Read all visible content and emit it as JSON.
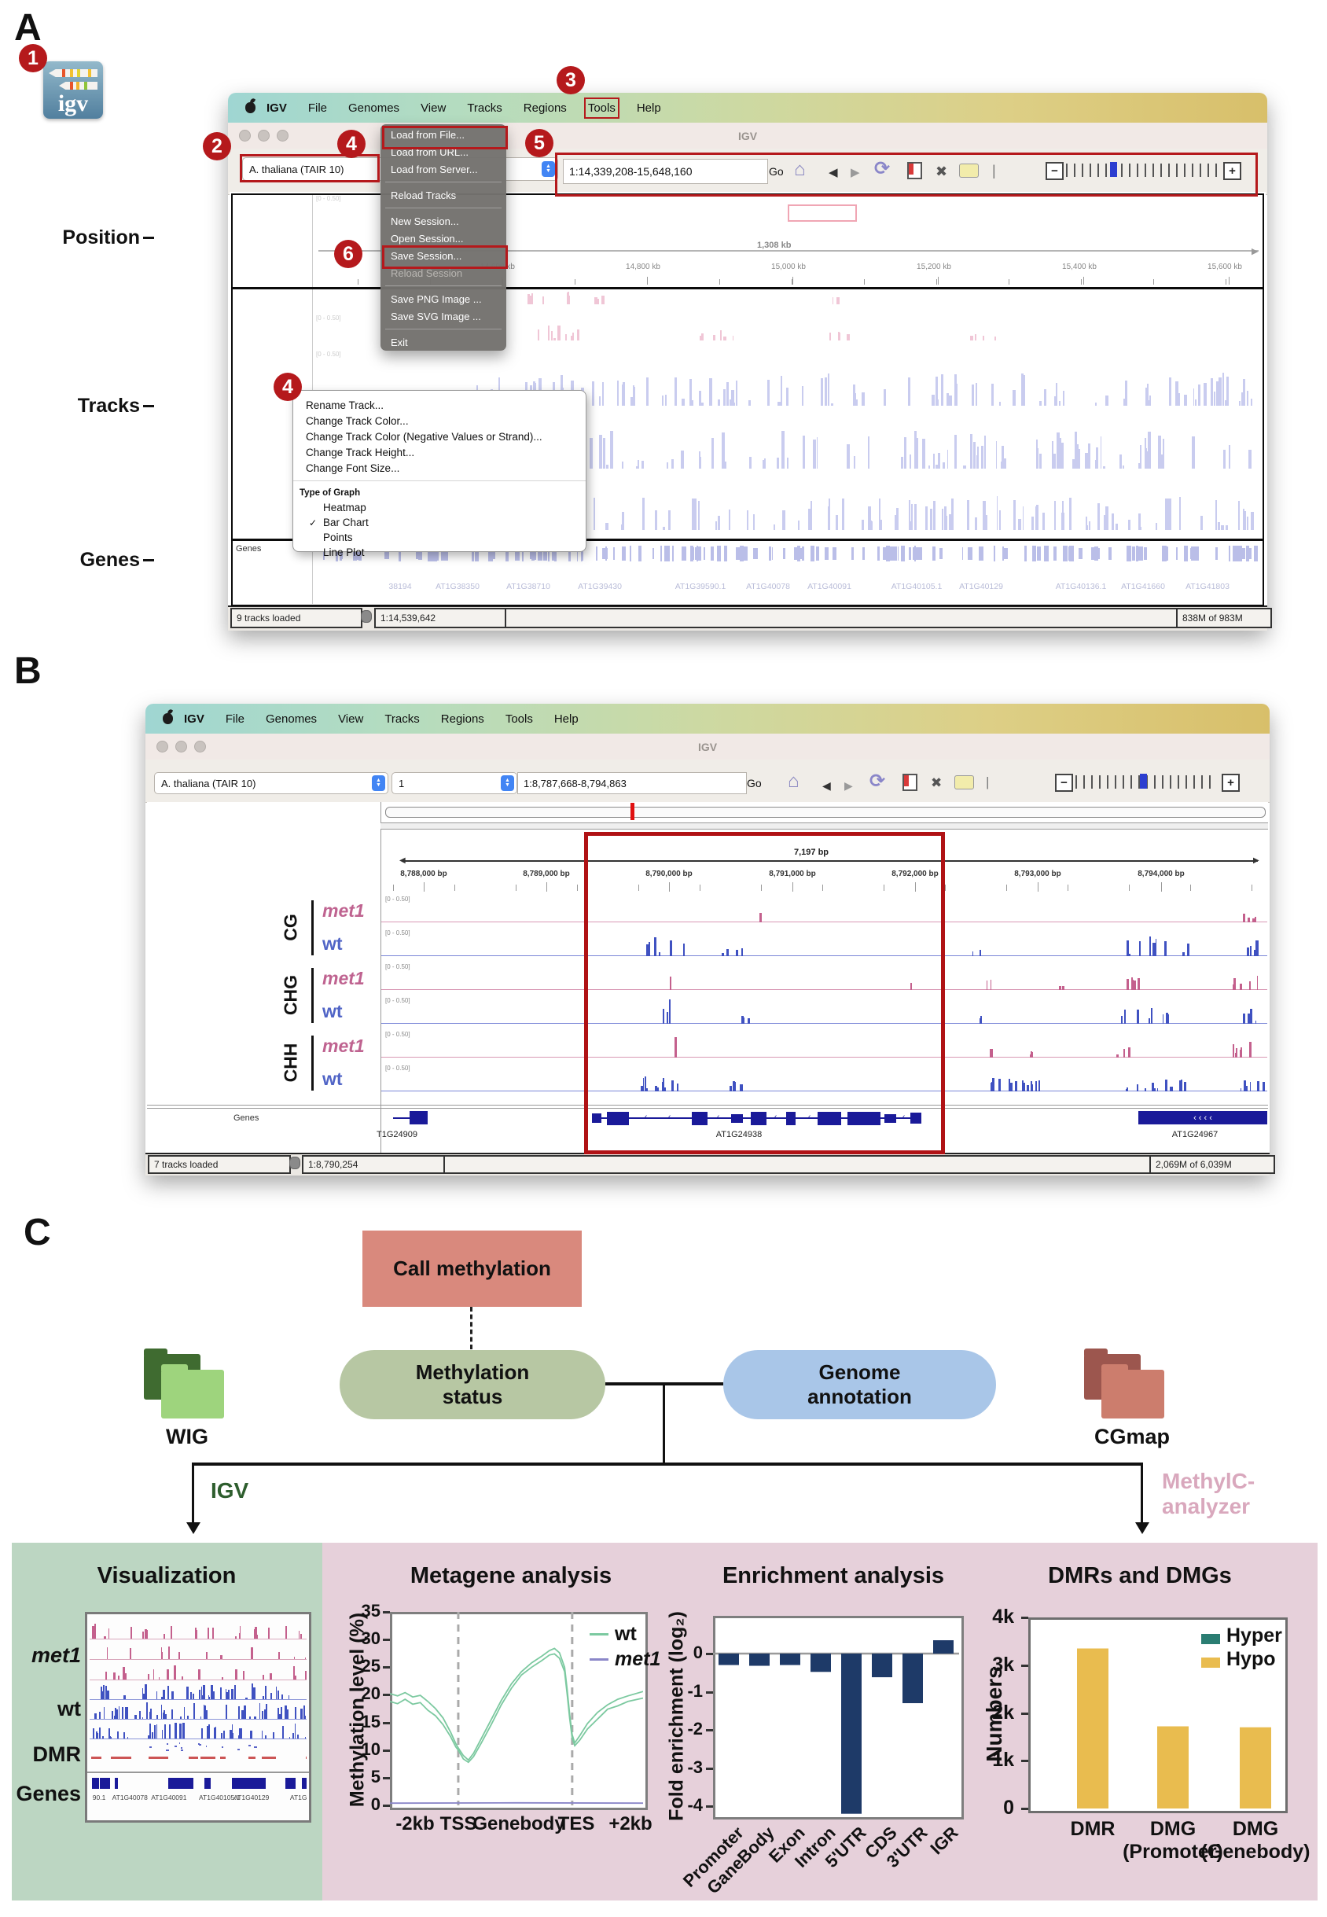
{
  "figure": {
    "panel_a": "A",
    "panel_b": "B",
    "panel_c": "C"
  },
  "badges": {
    "b1": "1",
    "b2": "2",
    "b3": "3",
    "b4": "4",
    "b5": "5",
    "b6": "6"
  },
  "igv_logo_text": "igv",
  "menubar_items": [
    "IGV",
    "File",
    "Genomes",
    "View",
    "Tracks",
    "Regions",
    "Tools",
    "Help"
  ],
  "panelA": {
    "side_labels": [
      "Position",
      "Tracks",
      "Genes"
    ],
    "window_title": "IGV",
    "genome_select": "A. thaliana (TAIR 10)",
    "locus": "1:14,339,208-15,648,160",
    "go": "Go",
    "file_menu": [
      {
        "label": "Load from File...",
        "boxed": true
      },
      {
        "label": "Load from URL..."
      },
      {
        "label": "Load from Server..."
      },
      {
        "sep": true
      },
      {
        "label": "Reload Tracks"
      },
      {
        "sep": true
      },
      {
        "label": "New Session..."
      },
      {
        "label": "Open Session..."
      },
      {
        "label": "Save Session...",
        "boxed": true
      },
      {
        "label": "Reload Session",
        "disabled": true
      },
      {
        "sep": true
      },
      {
        "label": "Save PNG Image ..."
      },
      {
        "label": "Save SVG Image ..."
      },
      {
        "sep": true
      },
      {
        "label": "Exit"
      }
    ],
    "context_menu": {
      "items": [
        "Rename Track...",
        "Change Track Color...",
        "Change Track Color (Negative Values or Strand)...",
        "Change Track Height...",
        "Change Font Size..."
      ],
      "section_header": "Type of Graph",
      "graph_types": [
        {
          "label": "Heatmap"
        },
        {
          "label": "Bar Chart",
          "checked": true
        },
        {
          "label": "Points"
        },
        {
          "label": "Line Plot"
        }
      ]
    },
    "ruler": {
      "span": "1,308 kb",
      "ticks": [
        "14,600 kb",
        "14,800 kb",
        "15,000 kb",
        "15,200 kb",
        "15,400 kb",
        "15,600 kb"
      ]
    },
    "track_range": "[0 - 0.50]",
    "genes_label": "Genes",
    "gene_names": [
      "38194",
      "AT1G38350",
      "AT1G38710",
      "AT1G39430",
      "AT1G39590.1",
      "AT1G40078",
      "AT1G40091",
      "AT1G40105.1",
      "AT1G40129",
      "AT1G40136.1",
      "AT1G41660",
      "AT1G41803"
    ],
    "status": {
      "tracks": "9 tracks loaded",
      "position": "1:14,539,642",
      "memory": "838M of 983M"
    }
  },
  "panelB": {
    "window_title": "IGV",
    "genome_select": "A. thaliana (TAIR 10)",
    "chrom_select": "1",
    "locus": "1:8,787,668-8,794,863",
    "go": "Go",
    "ruler": {
      "span": "7,197 bp",
      "ticks": [
        "8,788,000 bp",
        "8,789,000 bp",
        "8,790,000 bp",
        "8,791,000 bp",
        "8,792,000 bp",
        "8,793,000 bp",
        "8,794,000 bp"
      ]
    },
    "track_range": "[0 - 0.50]",
    "groups": [
      "CG",
      "CHG",
      "CHH"
    ],
    "sample_met1": "met1",
    "sample_wt": "wt",
    "genes_label": "Genes",
    "genes": [
      "T1G24909",
      "AT1G24938",
      "AT1G24967"
    ],
    "status": {
      "tracks": "7 tracks loaded",
      "position": "1:8,790,254",
      "memory": "2,069M of 6,039M"
    }
  },
  "panelC": {
    "call_methylation": "Call methylation",
    "methylation_status": "Methylation status",
    "genome_annotation": "Genome annotation",
    "wig": "WIG",
    "cgmap": "CGmap",
    "igv_branch": "IGV",
    "methylc_line1": "MethylC-",
    "methylc_line2": "analyzer",
    "visualization": {
      "title": "Visualization",
      "row_labels": [
        "met1",
        "wt",
        "DMR",
        "Genes"
      ],
      "mini_gene_labels": [
        "90.1",
        "AT1G40078",
        "AT1G40091",
        "AT1G40105.1",
        "AT1G40129",
        "AT1G"
      ]
    }
  },
  "chart_data": [
    {
      "type": "line",
      "title": "Metagene analysis",
      "ylabel": "Methylation level (%)",
      "ylim": [
        0,
        35
      ],
      "yticks": [
        0,
        5,
        10,
        15,
        20,
        25,
        30,
        35
      ],
      "x_axis_labels": [
        "-2kb",
        "TSS",
        "Genebody",
        "TES",
        "+2kb"
      ],
      "marker_positions": [
        0.27,
        0.72
      ],
      "legend": [
        "wt",
        "met1"
      ],
      "series": [
        {
          "name": "wt",
          "color": "#7cc9a0",
          "points": [
            [
              0,
              20.2
            ],
            [
              0.03,
              19.8
            ],
            [
              0.06,
              20.4
            ],
            [
              0.09,
              19.6
            ],
            [
              0.12,
              19.9
            ],
            [
              0.15,
              18.8
            ],
            [
              0.18,
              17.5
            ],
            [
              0.21,
              15.8
            ],
            [
              0.24,
              13.2
            ],
            [
              0.26,
              11.2
            ],
            [
              0.27,
              10.4
            ],
            [
              0.29,
              9.0
            ],
            [
              0.31,
              8.2
            ],
            [
              0.33,
              9.4
            ],
            [
              0.36,
              12.0
            ],
            [
              0.4,
              15.5
            ],
            [
              0.44,
              19.0
            ],
            [
              0.48,
              22.0
            ],
            [
              0.52,
              24.2
            ],
            [
              0.56,
              25.8
            ],
            [
              0.6,
              27.0
            ],
            [
              0.63,
              28.0
            ],
            [
              0.65,
              28.4
            ],
            [
              0.67,
              27.6
            ],
            [
              0.69,
              25.0
            ],
            [
              0.7,
              21.0
            ],
            [
              0.71,
              16.5
            ],
            [
              0.72,
              12.8
            ],
            [
              0.73,
              11.3
            ],
            [
              0.75,
              12.6
            ],
            [
              0.78,
              14.8
            ],
            [
              0.82,
              16.8
            ],
            [
              0.86,
              18.2
            ],
            [
              0.9,
              19.2
            ],
            [
              0.94,
              19.8
            ],
            [
              1,
              20.6
            ]
          ]
        },
        {
          "name": "wt",
          "color": "#7cc9a0",
          "points": [
            [
              0,
              18.8
            ],
            [
              0.03,
              18.4
            ],
            [
              0.06,
              19.2
            ],
            [
              0.09,
              18.3
            ],
            [
              0.12,
              18.6
            ],
            [
              0.15,
              17.2
            ],
            [
              0.18,
              16.2
            ],
            [
              0.21,
              14.6
            ],
            [
              0.24,
              12.4
            ],
            [
              0.26,
              10.6
            ],
            [
              0.27,
              10.0
            ],
            [
              0.29,
              8.4
            ],
            [
              0.31,
              7.8
            ],
            [
              0.33,
              8.8
            ],
            [
              0.36,
              11.2
            ],
            [
              0.4,
              14.6
            ],
            [
              0.44,
              18.2
            ],
            [
              0.48,
              21.2
            ],
            [
              0.52,
              23.6
            ],
            [
              0.56,
              25.0
            ],
            [
              0.6,
              26.2
            ],
            [
              0.63,
              27.2
            ],
            [
              0.65,
              27.4
            ],
            [
              0.67,
              26.6
            ],
            [
              0.69,
              24.2
            ],
            [
              0.7,
              20.2
            ],
            [
              0.71,
              15.8
            ],
            [
              0.72,
              12.2
            ],
            [
              0.73,
              10.8
            ],
            [
              0.75,
              11.8
            ],
            [
              0.78,
              13.8
            ],
            [
              0.82,
              15.6
            ],
            [
              0.86,
              17.4
            ],
            [
              0.9,
              18.0
            ],
            [
              0.94,
              18.8
            ],
            [
              1,
              19.4
            ]
          ]
        },
        {
          "name": "met1",
          "color": "#8a86c8",
          "points": [
            [
              0,
              0.4
            ],
            [
              0.5,
              0.45
            ],
            [
              1,
              0.4
            ]
          ]
        }
      ]
    },
    {
      "type": "bar",
      "title": "Enrichment analysis",
      "ylabel": "Fold enrichment (log₂)",
      "categories": [
        "Promoter",
        "GaneBody",
        "Exon",
        "Intron",
        "5'UTR",
        "CDS",
        "3'UTR",
        "IGR"
      ],
      "values": [
        -0.3,
        -0.32,
        -0.3,
        -0.48,
        -4.2,
        -0.62,
        -1.3,
        0.35
      ],
      "ylim": [
        -4.3,
        1.0
      ],
      "yticks": [
        0,
        -1,
        -2,
        -3,
        -4
      ],
      "bar_color": "#1e3a68"
    },
    {
      "type": "bar",
      "title": "DMRs and DMGs",
      "ylabel": "Numbers",
      "categories": [
        "DMR",
        "DMG\n(Promoter)",
        "DMG\n(Genebody)"
      ],
      "series": [
        {
          "name": "Hyper",
          "color": "#2a7d72",
          "values": [
            0,
            0,
            0
          ]
        },
        {
          "name": "Hypo",
          "color": "#e9bc4f",
          "values": [
            3350,
            1720,
            1700
          ]
        }
      ],
      "ytick_labels": [
        "0",
        "1k",
        "2k",
        "3k",
        "4k"
      ],
      "ylim": [
        0,
        4000
      ]
    }
  ]
}
